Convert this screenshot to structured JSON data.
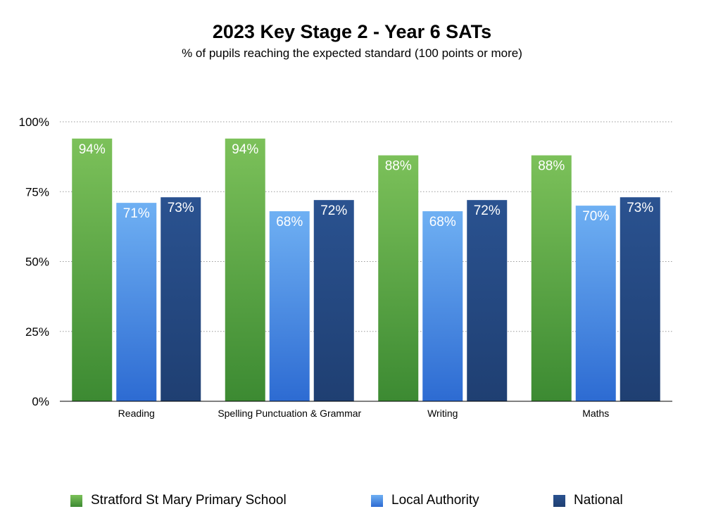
{
  "chart_data": {
    "type": "bar",
    "title": "2023 Key Stage 2 - Year 6 SATs",
    "subtitle": "% of pupils reaching the expected standard (100 points or more)",
    "categories": [
      "Reading",
      "Spelling Punctuation & Grammar",
      "Writing",
      "Maths"
    ],
    "series": [
      {
        "name": "Stratford St Mary Primary School",
        "values": [
          94,
          94,
          88,
          88
        ],
        "labels": [
          "94%",
          "94%",
          "88%",
          "88%"
        ],
        "color": "#4f9e3d"
      },
      {
        "name": "Local Authority",
        "values": [
          71,
          68,
          68,
          70
        ],
        "labels": [
          "71%",
          "68%",
          "68%",
          "70%"
        ],
        "color": "#4e8fe3"
      },
      {
        "name": "National",
        "values": [
          73,
          72,
          72,
          73
        ],
        "labels": [
          "73%",
          "72%",
          "72%",
          "73%"
        ],
        "color": "#26497e"
      }
    ],
    "yticks": [
      "0%",
      "25%",
      "50%",
      "75%",
      "100%"
    ],
    "ylim": [
      0,
      100
    ],
    "grid": true,
    "legend_position": "bottom"
  }
}
